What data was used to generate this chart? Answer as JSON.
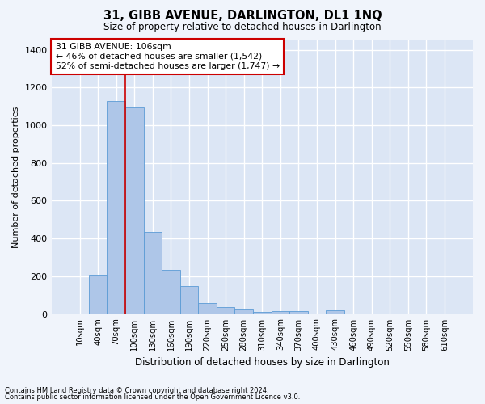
{
  "title": "31, GIBB AVENUE, DARLINGTON, DL1 1NQ",
  "subtitle": "Size of property relative to detached houses in Darlington",
  "xlabel": "Distribution of detached houses by size in Darlington",
  "ylabel": "Number of detached properties",
  "footnote1": "Contains HM Land Registry data © Crown copyright and database right 2024.",
  "footnote2": "Contains public sector information licensed under the Open Government Licence v3.0.",
  "categories": [
    "10sqm",
    "40sqm",
    "70sqm",
    "100sqm",
    "130sqm",
    "160sqm",
    "190sqm",
    "220sqm",
    "250sqm",
    "280sqm",
    "310sqm",
    "340sqm",
    "370sqm",
    "400sqm",
    "430sqm",
    "460sqm",
    "490sqm",
    "520sqm",
    "550sqm",
    "580sqm",
    "610sqm"
  ],
  "values": [
    0,
    207,
    1127,
    1095,
    433,
    232,
    147,
    57,
    38,
    25,
    10,
    15,
    15,
    0,
    20,
    0,
    0,
    0,
    0,
    0,
    0
  ],
  "bar_color": "#aec6e8",
  "bar_edge_color": "#5b9bd5",
  "background_color": "#dce6f5",
  "grid_color": "#ffffff",
  "fig_background": "#f0f4fb",
  "red_line_x": 2.5,
  "annotation_text": "31 GIBB AVENUE: 106sqm\n← 46% of detached houses are smaller (1,542)\n52% of semi-detached houses are larger (1,747) →",
  "annotation_box_color": "#ffffff",
  "annotation_box_edge": "#cc0000",
  "ylim": [
    0,
    1450
  ],
  "yticks": [
    0,
    200,
    400,
    600,
    800,
    1000,
    1200,
    1400
  ]
}
